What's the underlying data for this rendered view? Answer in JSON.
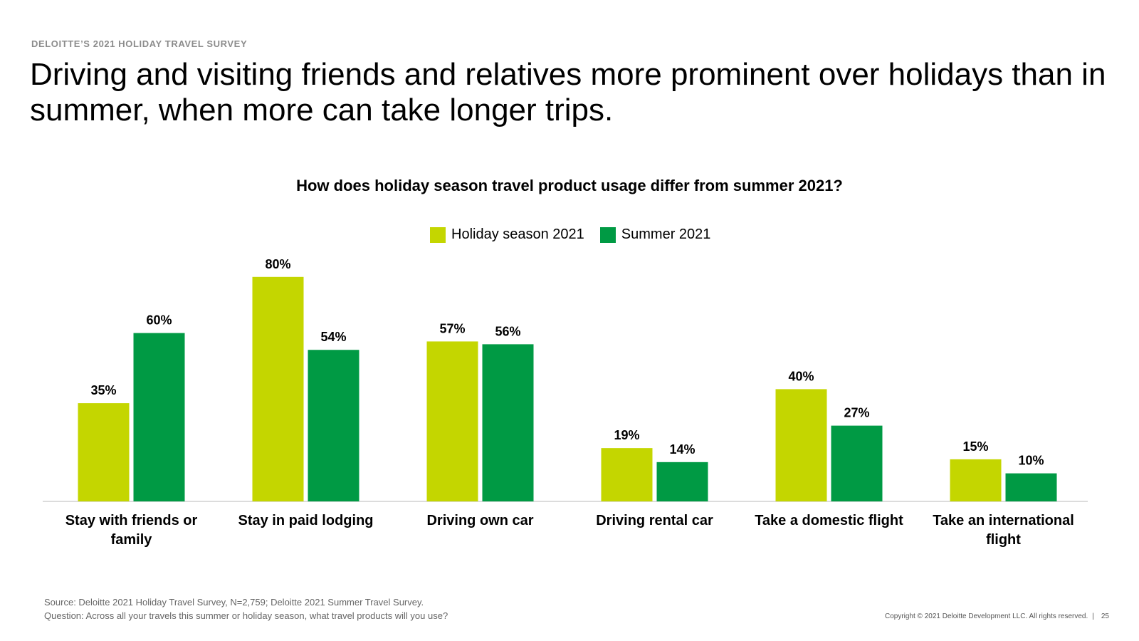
{
  "header": {
    "kicker": "DELOITTE’S 2021 HOLIDAY TRAVEL SURVEY",
    "headline": "Driving and visiting friends and relatives more prominent over holidays than in summer, when more can take longer trips."
  },
  "colors": {
    "holiday": "#c4d600",
    "summer": "#009a44",
    "axis": "#d0d0d0"
  },
  "chart_data": {
    "type": "bar",
    "title": "How does holiday season travel product usage differ from summer 2021?",
    "categories": [
      [
        "Stay with friends or",
        "family"
      ],
      [
        "Stay in paid lodging"
      ],
      [
        "Driving own car"
      ],
      [
        "Driving rental car"
      ],
      [
        "Take a domestic flight"
      ],
      [
        "Take an international",
        "flight"
      ]
    ],
    "series": [
      {
        "name": "Holiday season 2021",
        "values": [
          35,
          80,
          57,
          19,
          40,
          15
        ],
        "labels": [
          "35%",
          "80%",
          "57%",
          "19%",
          "40%",
          "15%"
        ]
      },
      {
        "name": "Summer 2021",
        "values": [
          60,
          54,
          56,
          14,
          27,
          10
        ],
        "labels": [
          "60%",
          "54%",
          "56%",
          "14%",
          "27%",
          "10%"
        ]
      }
    ],
    "ylim": [
      0,
      100
    ],
    "grid": false,
    "legend_position": "top-center",
    "xlabel": "",
    "ylabel": ""
  },
  "footer": {
    "source": "Source: Deloitte 2021 Holiday Travel Survey, N=2,759; Deloitte 2021 Summer Travel Survey.",
    "question": "Question: Across all your travels this summer or holiday season, what travel products will you use?",
    "copyright": "Copyright © 2021 Deloitte Development LLC. All rights reserved.",
    "separator": "|",
    "page_number": "25"
  }
}
